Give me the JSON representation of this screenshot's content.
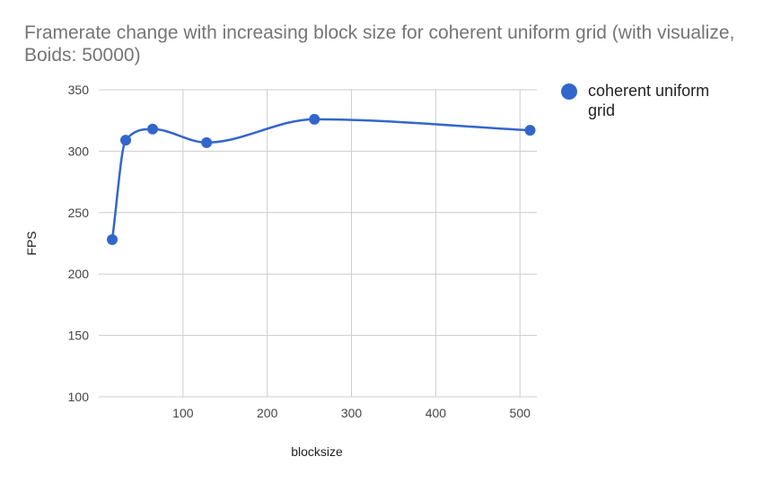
{
  "title": "Framerate change with increasing block size for coherent uniform grid (with visualize, Boids: 50000)",
  "colors": {
    "series": "#3366cc",
    "grid": "#cccccc",
    "title": "#757575"
  },
  "legend": {
    "position": "right",
    "label": "coherent uniform grid"
  },
  "chart_data": {
    "type": "line",
    "smooth": true,
    "markers": "circle",
    "title": "Framerate change with increasing block size for coherent uniform grid (with visualize, Boids: 50000)",
    "xlabel": "blocksize",
    "ylabel": "FPS",
    "xlim": [
      0,
      520
    ],
    "ylim": [
      100,
      350
    ],
    "xticks": [
      100,
      200,
      300,
      400,
      500
    ],
    "yticks": [
      100,
      150,
      200,
      250,
      300,
      350
    ],
    "grid": true,
    "series": [
      {
        "name": "coherent uniform grid",
        "x": [
          16,
          32,
          64,
          128,
          256,
          512
        ],
        "y": [
          228,
          309,
          318,
          307,
          326,
          317
        ]
      }
    ]
  }
}
